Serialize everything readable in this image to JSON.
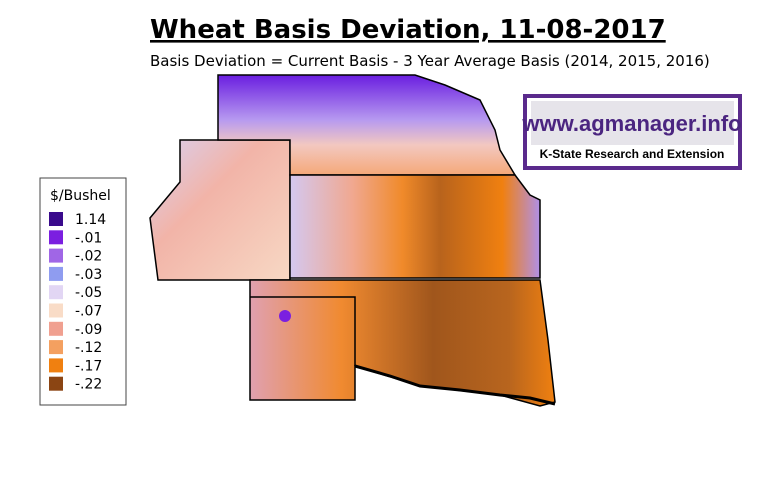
{
  "header": {
    "title": "Wheat Basis Deviation, 11-08-2017",
    "subtitle": "Basis Deviation = Current Basis - 3 Year Average Basis (2014, 2015, 2016)"
  },
  "logo": {
    "url": "www.agmanager.info",
    "tagline": "K-State Research and Extension"
  },
  "legend": {
    "title": "$/Bushel",
    "items": [
      {
        "label": "1.14",
        "color": "#3a0a8c"
      },
      {
        "label": "-.01",
        "color": "#7b1fe0"
      },
      {
        "label": "-.02",
        "color": "#a066e6"
      },
      {
        "label": "-.03",
        "color": "#8f9cf0"
      },
      {
        "label": "-.05",
        "color": "#e2d6f4"
      },
      {
        "label": "-.07",
        "color": "#f9dcc7"
      },
      {
        "label": "-.09",
        "color": "#f0a090"
      },
      {
        "label": "-.12",
        "color": "#f4a060"
      },
      {
        "label": "-.17",
        "color": "#f08010"
      },
      {
        "label": "-.22",
        "color": "#8b4513"
      }
    ]
  }
}
